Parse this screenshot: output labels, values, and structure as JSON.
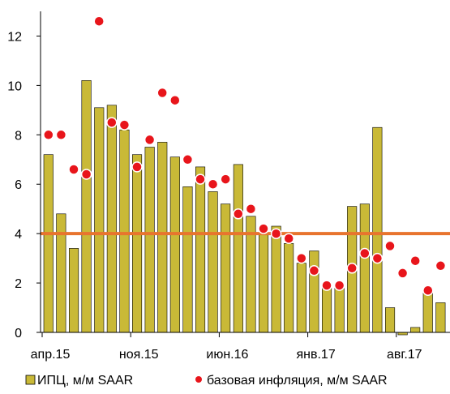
{
  "chart_data": {
    "type": "bar",
    "ylim": [
      0,
      13
    ],
    "yticks": [
      0,
      2,
      4,
      6,
      8,
      10,
      12
    ],
    "x_tick_labels": [
      {
        "index": 0,
        "label": "апр.15"
      },
      {
        "index": 7,
        "label": "ноя.15"
      },
      {
        "index": 14,
        "label": "июн.16"
      },
      {
        "index": 21,
        "label": "янв.17"
      },
      {
        "index": 28,
        "label": "авг.17"
      }
    ],
    "series": [
      {
        "name": "ИПЦ, м/м SAAR",
        "kind": "bar",
        "color": "#c9b937",
        "values": [
          7.2,
          4.8,
          3.4,
          10.2,
          9.1,
          9.2,
          8.2,
          7.2,
          7.5,
          7.7,
          7.1,
          5.9,
          6.7,
          5.7,
          5.2,
          6.8,
          4.7,
          4.0,
          4.3,
          3.6,
          2.8,
          3.3,
          1.8,
          1.8,
          5.1,
          5.2,
          8.3,
          1.0,
          -0.1,
          0.2,
          1.6,
          1.2
        ]
      },
      {
        "name": "базовая инфляция, м/м SAAR",
        "kind": "point",
        "color": "#e8151b",
        "values": [
          8.0,
          8.0,
          6.6,
          6.4,
          12.6,
          8.5,
          8.4,
          6.7,
          7.8,
          9.7,
          9.4,
          7.0,
          6.2,
          6.0,
          6.2,
          4.8,
          5.0,
          4.2,
          4.0,
          3.8,
          3.0,
          2.5,
          1.9,
          1.9,
          2.6,
          3.2,
          3.0,
          3.5,
          2.4,
          2.9,
          1.7,
          2.7
        ]
      }
    ],
    "reference_line": {
      "value": 4.0,
      "color": "#e8742e"
    }
  }
}
